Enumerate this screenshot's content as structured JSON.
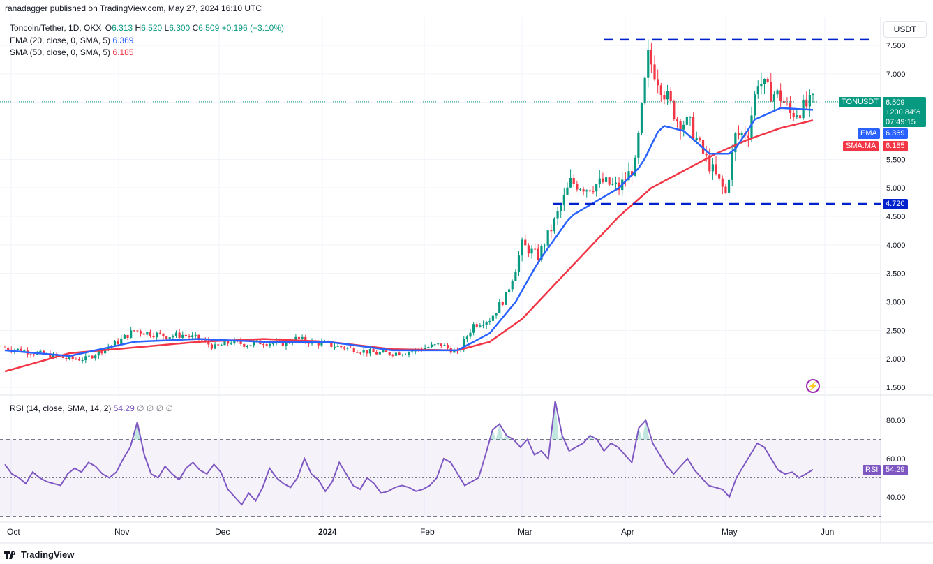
{
  "header": {
    "published": "ranadagger published on TradingView.com, May 27, 2024 16:10 UTC"
  },
  "legend": {
    "symbol": "Toncoin/Tether, 1D, OKX",
    "o_label": "O",
    "o_value": "6.313",
    "h_label": "H",
    "h_value": "6.520",
    "l_label": "L",
    "l_value": "6.300",
    "c_label": "C",
    "c_value": "6.509",
    "change": "+0.196 (+3.10%)",
    "ema_label": "EMA (20, close, 0, SMA, 5)",
    "ema_value": "6.369",
    "sma_label": "SMA (50, close, 0, SMA, 5)",
    "sma_value": "6.185",
    "rsi_label": "RSI (14, close, SMA, 14, 2)",
    "rsi_value": "54.29",
    "rsi_extra": "∅ ∅ ∅ ∅"
  },
  "toolbar": {
    "currency": "USDT"
  },
  "tags": {
    "symbol_tag": "TONUSDT",
    "price": "6.509",
    "change_pct": "+200.84%",
    "countdown": "07:49:15",
    "ema_tag": "EMA",
    "ema_val": "6.369",
    "sma_tag": "SMA:MA",
    "sma_val": "6.185",
    "support": "4.720",
    "rsi_tag": "RSI",
    "rsi_val": "54.29"
  },
  "colors": {
    "up": "#089981",
    "down": "#f23645",
    "ema": "#2962ff",
    "sma": "#f23645",
    "rsi": "#7e57c2",
    "levels": "#0022cc"
  },
  "footer": {
    "brand": "TradingView"
  },
  "chart_data": [
    {
      "type": "candlestick",
      "title": "Toncoin/Tether, 1D, OKX",
      "y_ticks": [
        "7.500",
        "7.000",
        "6.500",
        "6.000",
        "5.500",
        "5.000",
        "4.500",
        "4.000",
        "3.500",
        "3.000",
        "2.500",
        "2.000",
        "1.500"
      ],
      "y_range": [
        1.5,
        7.7
      ],
      "x_ticks": [
        "Oct",
        "Nov",
        "Dec",
        "2024",
        "Feb",
        "Mar",
        "Apr",
        "May",
        "Jun"
      ],
      "close_path": [
        [
          0,
          2.2
        ],
        [
          10,
          2.1
        ],
        [
          20,
          2.0
        ],
        [
          25,
          2.0
        ],
        [
          30,
          2.15
        ],
        [
          35,
          2.3
        ],
        [
          40,
          2.5
        ],
        [
          45,
          2.45
        ],
        [
          50,
          2.4
        ],
        [
          55,
          2.42
        ],
        [
          60,
          2.35
        ],
        [
          65,
          2.2
        ],
        [
          70,
          2.3
        ],
        [
          75,
          2.25
        ],
        [
          80,
          2.3
        ],
        [
          85,
          2.25
        ],
        [
          90,
          2.35
        ],
        [
          95,
          2.3
        ],
        [
          100,
          2.25
        ],
        [
          105,
          2.2
        ],
        [
          110,
          2.15
        ],
        [
          115,
          2.1
        ],
        [
          120,
          2.1
        ],
        [
          125,
          2.12
        ],
        [
          130,
          2.2
        ],
        [
          135,
          2.25
        ],
        [
          140,
          2.1
        ],
        [
          145,
          2.6
        ],
        [
          150,
          2.7
        ],
        [
          155,
          3.1
        ],
        [
          158,
          3.6
        ],
        [
          160,
          4.0
        ],
        [
          165,
          3.8
        ],
        [
          170,
          4.4
        ],
        [
          175,
          5.1
        ],
        [
          180,
          5.0
        ],
        [
          185,
          5.1
        ],
        [
          190,
          5.0
        ],
        [
          195,
          5.4
        ],
        [
          199,
          7.3
        ],
        [
          203,
          6.8
        ],
        [
          208,
          6.2
        ],
        [
          212,
          6.1
        ],
        [
          216,
          5.6
        ],
        [
          220,
          5.2
        ],
        [
          223,
          4.9
        ],
        [
          226,
          5.9
        ],
        [
          230,
          6.0
        ],
        [
          233,
          6.9
        ],
        [
          236,
          6.7
        ],
        [
          240,
          6.6
        ],
        [
          243,
          6.3
        ],
        [
          247,
          6.4
        ],
        [
          250,
          6.509
        ]
      ],
      "ema_path": [
        [
          0,
          2.15
        ],
        [
          20,
          2.05
        ],
        [
          40,
          2.3
        ],
        [
          60,
          2.35
        ],
        [
          80,
          2.3
        ],
        [
          100,
          2.3
        ],
        [
          120,
          2.15
        ],
        [
          140,
          2.15
        ],
        [
          150,
          2.45
        ],
        [
          158,
          3.0
        ],
        [
          165,
          3.7
        ],
        [
          175,
          4.5
        ],
        [
          190,
          5.0
        ],
        [
          197,
          5.4
        ],
        [
          203,
          6.1
        ],
        [
          210,
          6.0
        ],
        [
          218,
          5.6
        ],
        [
          225,
          5.6
        ],
        [
          232,
          6.2
        ],
        [
          240,
          6.4
        ],
        [
          250,
          6.369
        ]
      ],
      "sma_path": [
        [
          0,
          1.78
        ],
        [
          20,
          2.1
        ],
        [
          40,
          2.2
        ],
        [
          60,
          2.3
        ],
        [
          80,
          2.35
        ],
        [
          100,
          2.3
        ],
        [
          120,
          2.17
        ],
        [
          140,
          2.15
        ],
        [
          150,
          2.3
        ],
        [
          160,
          2.7
        ],
        [
          170,
          3.3
        ],
        [
          180,
          3.9
        ],
        [
          190,
          4.5
        ],
        [
          200,
          5.0
        ],
        [
          210,
          5.3
        ],
        [
          220,
          5.6
        ],
        [
          230,
          5.85
        ],
        [
          240,
          6.05
        ],
        [
          250,
          6.185
        ]
      ],
      "resistance": 7.6,
      "support": 4.72
    },
    {
      "type": "line",
      "title": "RSI (14, close, SMA, 14, 2)",
      "y_ticks": [
        "80.00",
        "60.00",
        "40.00"
      ],
      "y_range": [
        28,
        92
      ],
      "bands": [
        70,
        50,
        30
      ],
      "values": [
        57,
        52,
        50,
        47,
        53,
        50,
        48,
        47,
        46,
        52,
        55,
        53,
        58,
        56,
        52,
        50,
        53,
        60,
        66,
        79,
        62,
        52,
        50,
        56,
        52,
        49,
        55,
        58,
        54,
        52,
        57,
        53,
        44,
        40,
        36,
        42,
        38,
        45,
        55,
        50,
        47,
        45,
        50,
        60,
        52,
        49,
        43,
        48,
        58,
        52,
        46,
        44,
        50,
        47,
        42,
        43,
        45,
        46,
        45,
        43,
        44,
        46,
        50,
        60,
        58,
        52,
        46,
        48,
        50,
        62,
        75,
        78,
        72,
        70,
        66,
        70,
        62,
        64,
        60,
        90,
        72,
        64,
        66,
        68,
        72,
        70,
        64,
        68,
        66,
        62,
        58,
        76,
        80,
        68,
        62,
        56,
        52,
        56,
        60,
        54,
        50,
        46,
        45,
        44,
        40,
        50,
        56,
        62,
        68,
        66,
        60,
        54,
        52,
        53,
        50,
        52,
        54.29
      ]
    }
  ]
}
